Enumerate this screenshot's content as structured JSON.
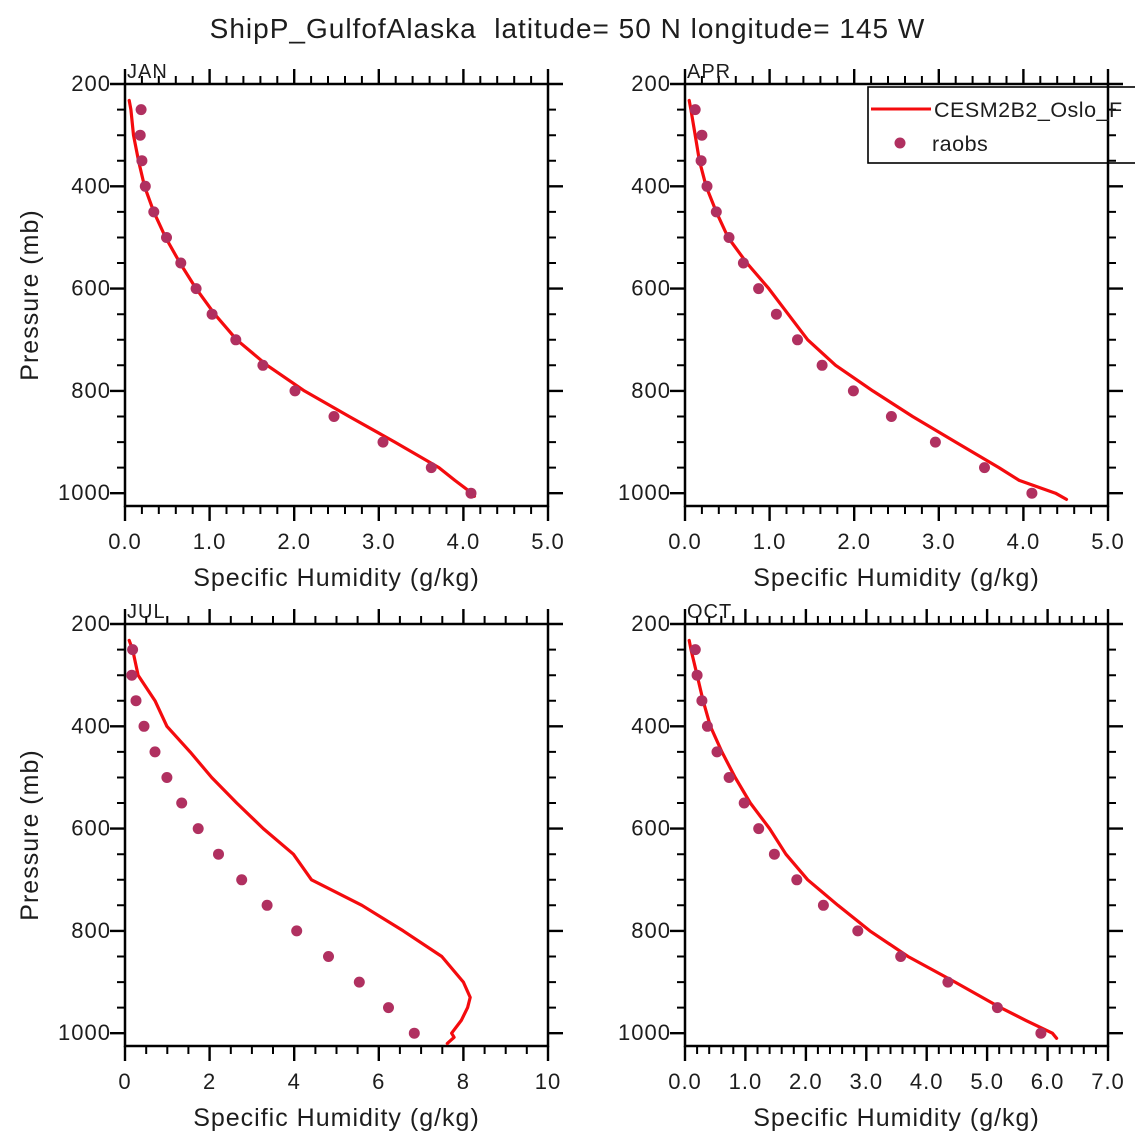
{
  "title": "ShipP_GulfofAlaska  latitude= 50 N longitude= 145 W",
  "colors": {
    "model_line": "#f40b0e",
    "raobs_dot": "#b03060",
    "text": "#1d1d1d",
    "frame": "#000000",
    "background": "#ffffff"
  },
  "legend": {
    "entries": [
      {
        "style": "line",
        "label": "CESM2B2_Oslo_F"
      },
      {
        "style": "dot",
        "label": "raobs"
      }
    ]
  },
  "axes": {
    "xlabel": "Specific Humidity (g/kg)",
    "ylabel": "Pressure (mb)",
    "yticks": [
      200,
      400,
      600,
      800,
      1000
    ],
    "y_minor_step": 50,
    "ylim": [
      200,
      1025
    ],
    "grid": false,
    "legend_position": "top-right-APR-panel"
  },
  "chart_data": [
    {
      "type": "line",
      "month": "JAN",
      "xlabel": "Specific Humidity (g/kg)",
      "ylabel": "Pressure (mb)",
      "xlim": [
        0,
        5
      ],
      "xticks": [
        0,
        1,
        2,
        3,
        4,
        5
      ],
      "xtick_labels": [
        "0.0",
        "1.0",
        "2.0",
        "3.0",
        "4.0",
        "5.0"
      ],
      "x_minor_step": 0.2,
      "has_legend": false,
      "model": {
        "name": "CESM2B2_Oslo_F",
        "pressure": [
          232,
          250,
          300,
          350,
          400,
          450,
          500,
          550,
          600,
          650,
          700,
          750,
          800,
          850,
          900,
          950,
          975,
          1000,
          1006
        ],
        "q": [
          0.05,
          0.07,
          0.1,
          0.16,
          0.23,
          0.34,
          0.48,
          0.65,
          0.84,
          1.06,
          1.32,
          1.68,
          2.12,
          2.65,
          3.19,
          3.71,
          3.9,
          4.1,
          4.13
        ]
      },
      "raobs": {
        "name": "raobs",
        "pressure": [
          250,
          300,
          350,
          400,
          450,
          500,
          550,
          600,
          650,
          700,
          750,
          800,
          850,
          900,
          950,
          1000
        ],
        "q": [
          0.19,
          0.18,
          0.2,
          0.24,
          0.34,
          0.49,
          0.66,
          0.84,
          1.03,
          1.31,
          1.63,
          2.01,
          2.47,
          3.05,
          3.62,
          4.09
        ]
      }
    },
    {
      "type": "line",
      "month": "APR",
      "xlabel": "Specific Humidity (g/kg)",
      "ylabel": "Pressure (mb)",
      "xlim": [
        0,
        5
      ],
      "xticks": [
        0,
        1,
        2,
        3,
        4,
        5
      ],
      "xtick_labels": [
        "0.0",
        "1.0",
        "2.0",
        "3.0",
        "4.0",
        "5.0"
      ],
      "x_minor_step": 0.2,
      "has_legend": true,
      "model": {
        "name": "CESM2B2_Oslo_F",
        "pressure": [
          232,
          250,
          300,
          350,
          400,
          450,
          500,
          550,
          600,
          650,
          700,
          750,
          800,
          850,
          900,
          950,
          975,
          1000,
          1012
        ],
        "q": [
          0.05,
          0.07,
          0.12,
          0.17,
          0.25,
          0.37,
          0.51,
          0.73,
          0.99,
          1.22,
          1.45,
          1.78,
          2.22,
          2.69,
          3.2,
          3.71,
          3.95,
          4.38,
          4.51
        ]
      },
      "raobs": {
        "name": "raobs",
        "pressure": [
          250,
          300,
          350,
          400,
          450,
          500,
          550,
          600,
          650,
          700,
          750,
          800,
          850,
          900,
          950,
          1000
        ],
        "q": [
          0.12,
          0.2,
          0.19,
          0.26,
          0.37,
          0.52,
          0.69,
          0.87,
          1.08,
          1.33,
          1.62,
          1.99,
          2.44,
          2.96,
          3.54,
          4.1
        ]
      }
    },
    {
      "type": "line",
      "month": "JUL",
      "xlabel": "Specific Humidity (g/kg)",
      "ylabel": "Pressure (mb)",
      "xlim": [
        0,
        10
      ],
      "xticks": [
        0,
        2,
        4,
        6,
        8,
        10
      ],
      "xtick_labels": [
        "0",
        "2",
        "4",
        "6",
        "8",
        "10"
      ],
      "x_minor_step": 0.5,
      "has_legend": false,
      "model": {
        "name": "CESM2B2_Oslo_F",
        "pressure": [
          232,
          250,
          300,
          350,
          400,
          450,
          500,
          550,
          600,
          650,
          700,
          750,
          800,
          850,
          900,
          930,
          950,
          975,
          1000,
          1008,
          1020
        ],
        "q": [
          0.1,
          0.18,
          0.31,
          0.71,
          0.99,
          1.54,
          2.05,
          2.64,
          3.27,
          3.98,
          4.41,
          5.6,
          6.58,
          7.49,
          8.0,
          8.16,
          8.1,
          7.95,
          7.72,
          7.78,
          7.62
        ]
      },
      "raobs": {
        "name": "raobs",
        "pressure": [
          250,
          300,
          350,
          400,
          450,
          500,
          550,
          600,
          650,
          700,
          750,
          800,
          850,
          900,
          950,
          1000
        ],
        "q": [
          0.18,
          0.16,
          0.26,
          0.45,
          0.71,
          0.99,
          1.34,
          1.73,
          2.21,
          2.76,
          3.36,
          4.06,
          4.81,
          5.54,
          6.23,
          6.84
        ]
      }
    },
    {
      "type": "line",
      "month": "OCT",
      "xlabel": "Specific Humidity (g/kg)",
      "ylabel": "Pressure (mb)",
      "xlim": [
        0,
        7
      ],
      "xticks": [
        0,
        1,
        2,
        3,
        4,
        5,
        6,
        7
      ],
      "xtick_labels": [
        "0.0",
        "1.0",
        "2.0",
        "3.0",
        "4.0",
        "5.0",
        "6.0",
        "7.0"
      ],
      "x_minor_step": 0.2,
      "has_legend": false,
      "model": {
        "name": "CESM2B2_Oslo_F",
        "pressure": [
          232,
          250,
          300,
          350,
          400,
          450,
          500,
          550,
          600,
          650,
          700,
          750,
          800,
          850,
          900,
          950,
          975,
          1000,
          1010
        ],
        "q": [
          0.07,
          0.1,
          0.2,
          0.3,
          0.42,
          0.61,
          0.83,
          1.08,
          1.4,
          1.67,
          2.03,
          2.53,
          3.06,
          3.69,
          4.47,
          5.22,
          5.64,
          6.08,
          6.15
        ]
      },
      "raobs": {
        "name": "raobs",
        "pressure": [
          250,
          300,
          350,
          400,
          450,
          500,
          550,
          600,
          650,
          700,
          750,
          800,
          850,
          900,
          950,
          1000
        ],
        "q": [
          0.17,
          0.2,
          0.28,
          0.37,
          0.53,
          0.73,
          0.98,
          1.22,
          1.48,
          1.85,
          2.29,
          2.86,
          3.57,
          4.35,
          5.17,
          5.89
        ]
      }
    }
  ]
}
